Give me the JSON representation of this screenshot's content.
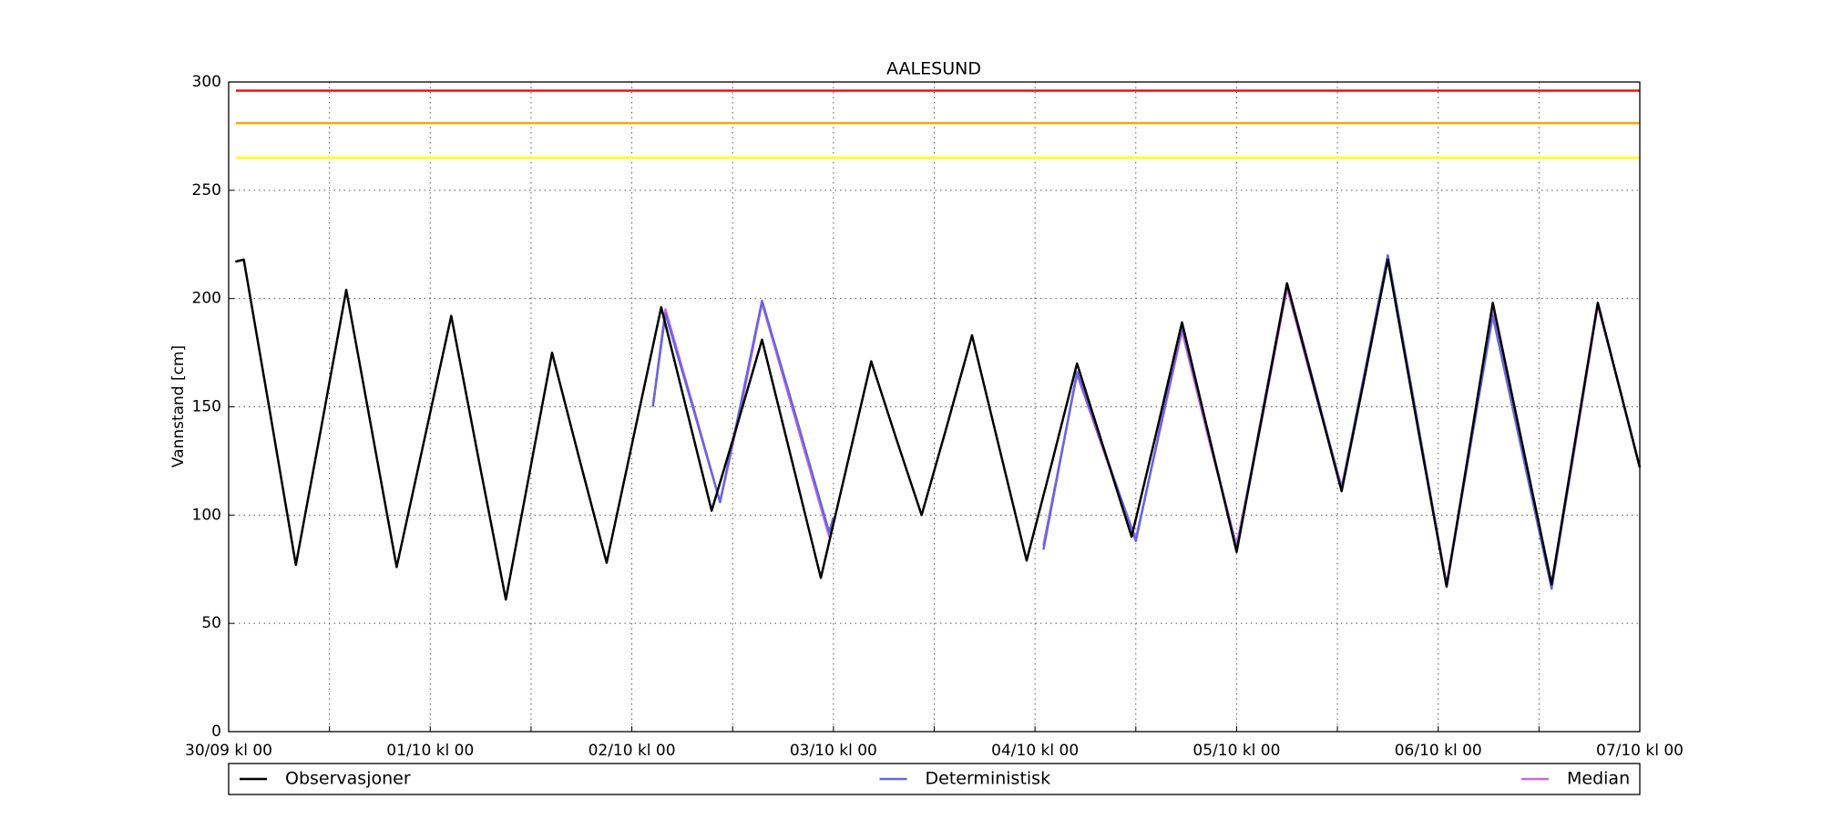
{
  "chart_data": {
    "type": "line",
    "title": "AALESUND",
    "ylabel": "Vannstand [cm]",
    "xlim": [
      0,
      168
    ],
    "ylim": [
      0,
      300
    ],
    "xticks": [
      {
        "value": 0,
        "label": "30/09 kl 00"
      },
      {
        "value": 24,
        "label": "01/10 kl 00"
      },
      {
        "value": 48,
        "label": "02/10 kl 00"
      },
      {
        "value": 72,
        "label": "03/10 kl 00"
      },
      {
        "value": 96,
        "label": "04/10 kl 00"
      },
      {
        "value": 120,
        "label": "05/10 kl 00"
      },
      {
        "value": 144,
        "label": "06/10 kl 00"
      },
      {
        "value": 168,
        "label": "07/10 kl 00"
      }
    ],
    "xminor": [
      12,
      36,
      60,
      84,
      108,
      132,
      156
    ],
    "yticks": [
      0,
      50,
      100,
      150,
      200,
      250,
      300
    ],
    "grid": true,
    "legend": "below",
    "hlines": [
      {
        "value": 296,
        "color": "#ee1111"
      },
      {
        "value": 281,
        "color": "#ffa500"
      },
      {
        "value": 265,
        "color": "#ffff00"
      }
    ],
    "series": [
      {
        "name": "Observasjoner",
        "color": "#000000",
        "x": [
          0.8,
          1.8,
          4.9,
          8,
          11,
          14,
          17,
          20,
          23.25,
          26.5,
          29.75,
          33,
          35.75,
          38.5,
          41.75,
          45,
          48.25,
          51.5,
          54.5,
          57.5,
          60.5,
          63.5,
          67,
          70.5,
          73.5,
          76.5,
          79.5,
          82.5,
          85.5,
          88.5,
          91.75,
          95,
          98,
          101,
          104.25,
          107.5,
          110.5,
          113.5,
          116.75,
          120,
          123,
          126,
          129.25,
          132.5,
          135.25,
          138,
          141.5,
          145,
          147.75,
          150.5,
          154,
          157.5,
          160.25,
          163,
          168
        ],
        "values": [
          217,
          218,
          148,
          77,
          140,
          204,
          140,
          76,
          134,
          192,
          126,
          61,
          118,
          175,
          126,
          78,
          137,
          196,
          149,
          102,
          141,
          181,
          126,
          71,
          121,
          171,
          135,
          100,
          141,
          183,
          131,
          79,
          124,
          170,
          130,
          90,
          139,
          189,
          136,
          83,
          145,
          207,
          159,
          111,
          164,
          218,
          142,
          67,
          132,
          198,
          133,
          68,
          133,
          198,
          122
        ]
      },
      {
        "name": "Deterministisk",
        "color": "#6666dd",
        "x": [
          50.5,
          52,
          55.25,
          58.5,
          61,
          63.5,
          67.5,
          71.5,
          72,
          84,
          97,
          101,
          104.5,
          108,
          110.75,
          113.5,
          116.75,
          120,
          123,
          126,
          129.25,
          132.5,
          135.25,
          138,
          141.5,
          145,
          147.75,
          150.5,
          154,
          157.5,
          160.25,
          163,
          165.5,
          168
        ],
        "values": [
          150,
          193,
          150,
          106,
          152,
          199,
          146,
          92,
          99,
          null,
          84,
          166,
          127,
          88,
          138,
          187,
          136,
          84,
          146,
          207,
          160,
          112,
          166,
          220,
          144,
          67,
          130,
          192,
          129,
          66,
          132,
          198,
          160,
          122
        ]
      },
      {
        "name": "Median",
        "color": "#cc66dd",
        "x": [
          50.5,
          52,
          55.25,
          58.5,
          61,
          63.5,
          67.5,
          71.5,
          72,
          84,
          97,
          101,
          104.5,
          108,
          110.75,
          113.5,
          116.75,
          120,
          123,
          126,
          129.25,
          132.5,
          135.25,
          138,
          141.5,
          145,
          147.75,
          150.5,
          154,
          157.5,
          160.25,
          163,
          165.5,
          168
        ],
        "values": [
          150,
          195,
          151,
          106,
          150,
          198,
          144,
          90,
          97,
          null,
          86,
          165,
          126,
          89,
          137,
          185,
          134,
          86,
          144,
          205,
          158,
          113,
          164,
          219,
          143,
          68,
          130,
          194,
          130,
          67,
          131,
          197,
          160,
          122
        ]
      }
    ]
  }
}
